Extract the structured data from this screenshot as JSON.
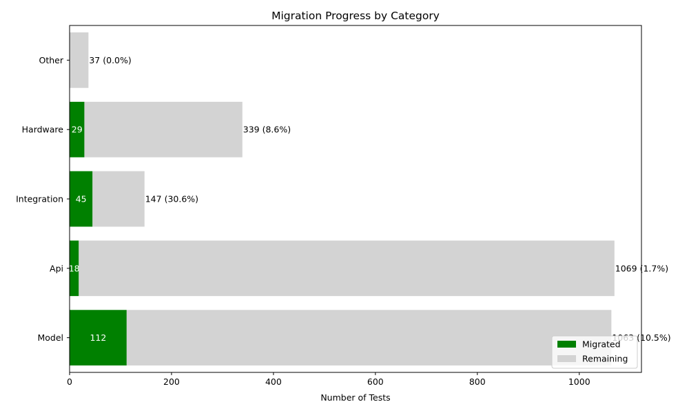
{
  "chart_data": {
    "type": "bar",
    "orientation": "horizontal",
    "stacked": true,
    "title": "Migration Progress by Category",
    "xlabel": "Number of Tests",
    "ylabel": "",
    "xlim": [
      0,
      1122
    ],
    "xticks": [
      0,
      200,
      400,
      600,
      800,
      1000
    ],
    "categories": [
      "Model",
      "Api",
      "Integration",
      "Hardware",
      "Other"
    ],
    "totals": [
      1063,
      1069,
      147,
      339,
      37
    ],
    "total_labels": [
      "1063 (10.5%)",
      "1069 (1.7%)",
      "147 (30.6%)",
      "339 (8.6%)",
      "37 (0.0%)"
    ],
    "series": [
      {
        "name": "Migrated",
        "color": "#008000",
        "values": [
          112,
          18,
          45,
          29,
          0
        ],
        "labels": [
          "112",
          "18",
          "45",
          "29",
          ""
        ]
      },
      {
        "name": "Remaining",
        "color": "#d3d3d3",
        "values": [
          951,
          1051,
          102,
          310,
          37
        ]
      }
    ],
    "legend_position": "lower-right",
    "grid": false
  }
}
